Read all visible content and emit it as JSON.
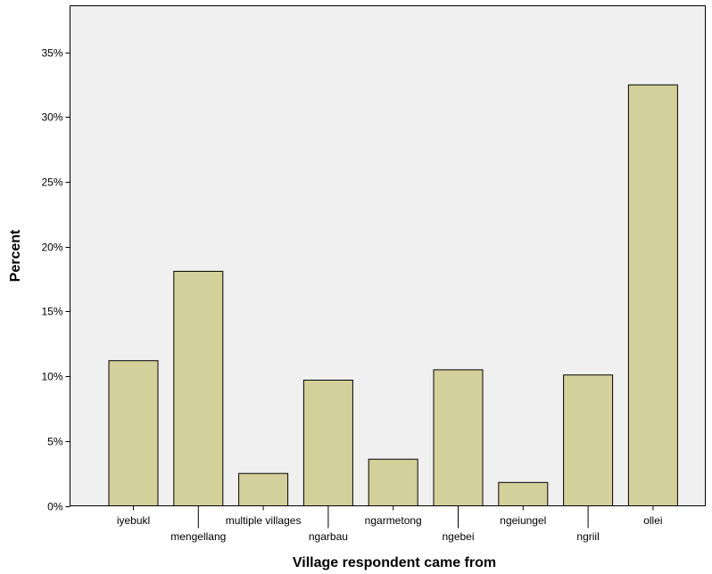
{
  "chart_data": {
    "type": "bar",
    "title": "",
    "xlabel": "Village respondent came from",
    "ylabel": "Percent",
    "categories": [
      "iyebukl",
      "mengellang",
      "multiple villages",
      "ngarbau",
      "ngarmetong",
      "ngebei",
      "ngeiungel",
      "ngriil",
      "ollei"
    ],
    "values": [
      11.2,
      18.1,
      2.5,
      9.7,
      3.6,
      10.5,
      1.8,
      10.1,
      32.5
    ],
    "ylim": [
      0,
      38.6
    ],
    "yticks": [
      0,
      5,
      10,
      15,
      20,
      25,
      30,
      35
    ],
    "ytick_labels": [
      "0%",
      "5%",
      "10%",
      "15%",
      "20%",
      "25%",
      "30%",
      "35%"
    ],
    "grid": false,
    "colors": {
      "bar_fill": "#d4d09c",
      "bar_stroke": "#000000",
      "plot_bg": "#f0f0f0"
    }
  }
}
